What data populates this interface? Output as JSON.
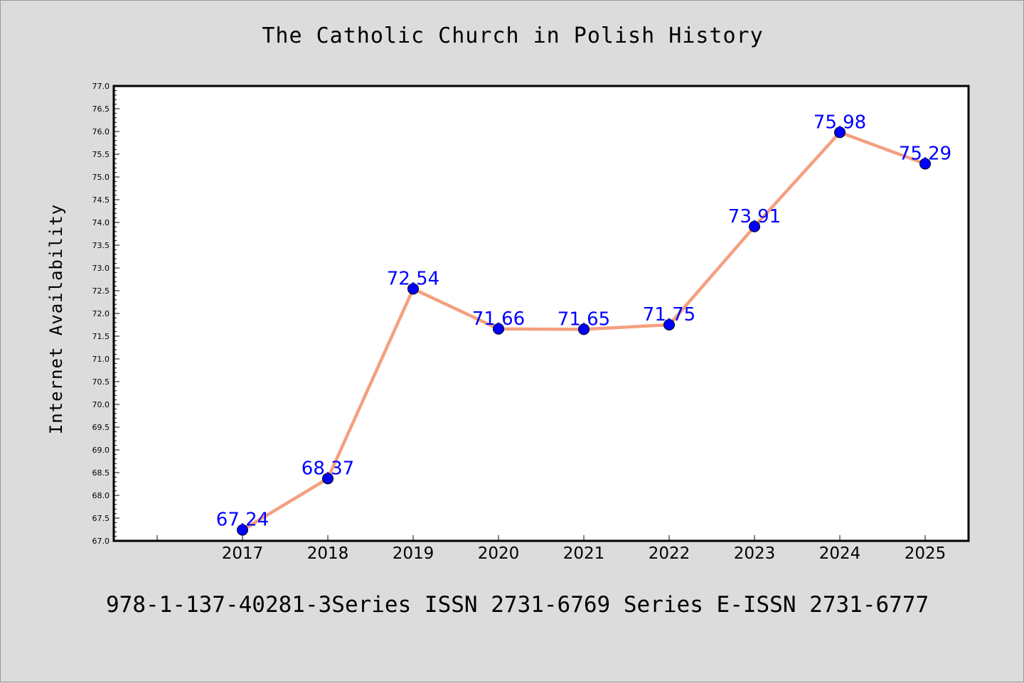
{
  "chart_data": {
    "type": "line",
    "title": "The Catholic Church in Polish History",
    "xlabel": "",
    "ylabel": "Internet Availability",
    "categories": [
      "2017",
      "2018",
      "2019",
      "2020",
      "2021",
      "2022",
      "2023",
      "2024",
      "2025"
    ],
    "values": [
      67.24,
      68.37,
      72.54,
      71.66,
      71.65,
      71.75,
      73.91,
      75.98,
      75.29
    ],
    "data_labels": [
      "67.24",
      "68.37",
      "72.54",
      "71.66",
      "71.65",
      "71.75",
      "73.91",
      "75.98",
      "75.29"
    ],
    "ylim": [
      67.0,
      77.0
    ],
    "yticks": [
      "67.0",
      "67.5",
      "68.0",
      "68.5",
      "69.0",
      "69.5",
      "70.0",
      "70.5",
      "71.0",
      "71.5",
      "72.0",
      "72.5",
      "73.0",
      "73.5",
      "74.0",
      "74.5",
      "75.0",
      "75.5",
      "76.0",
      "76.5",
      "77.0"
    ],
    "grid": false,
    "line_color": "#f4a07f",
    "marker_color": "#0000ff",
    "label_color": "#0000ff"
  },
  "footer": "978-1-137-40281-3Series ISSN 2731-6769 Series E-ISSN 2731-6777"
}
